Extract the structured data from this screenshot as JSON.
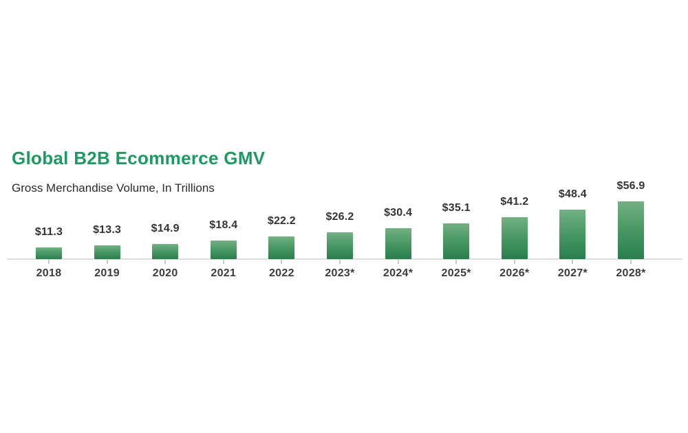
{
  "header": {
    "title": "Global B2B Ecommerce GMV",
    "subtitle": "Gross Merchandise Volume, In Trillions"
  },
  "colors": {
    "title_green": "#1b9a62",
    "bar_gradient_top": "#74b083",
    "bar_gradient_mid": "#4c9a66",
    "bar_gradient_bottom": "#287f4c",
    "axis_line": "#dcdcdc",
    "tick": "#c9c9c9",
    "value_label_text": "#333333",
    "year_label_text": "#3c3c3c",
    "background": "#ffffff"
  },
  "chart_data": {
    "type": "bar",
    "title": "Global B2B Ecommerce GMV",
    "subtitle": "Gross Merchandise Volume, In Trillions",
    "categories": [
      "2018",
      "2019",
      "2020",
      "2021",
      "2022",
      "2023*",
      "2024*",
      "2025*",
      "2026*",
      "2027*",
      "2028*"
    ],
    "values": [
      11.3,
      13.3,
      14.9,
      18.4,
      22.2,
      26.2,
      30.4,
      35.1,
      41.2,
      48.4,
      56.9
    ],
    "value_labels": [
      "$11.3",
      "$13.3",
      "$14.9",
      "$18.4",
      "$22.2",
      "$26.2",
      "$30.4",
      "$35.1",
      "$41.2",
      "$48.4",
      "$56.9"
    ],
    "xlabel": "",
    "ylabel": "",
    "ylim": [
      0,
      60
    ],
    "grid": false,
    "legend": false
  }
}
